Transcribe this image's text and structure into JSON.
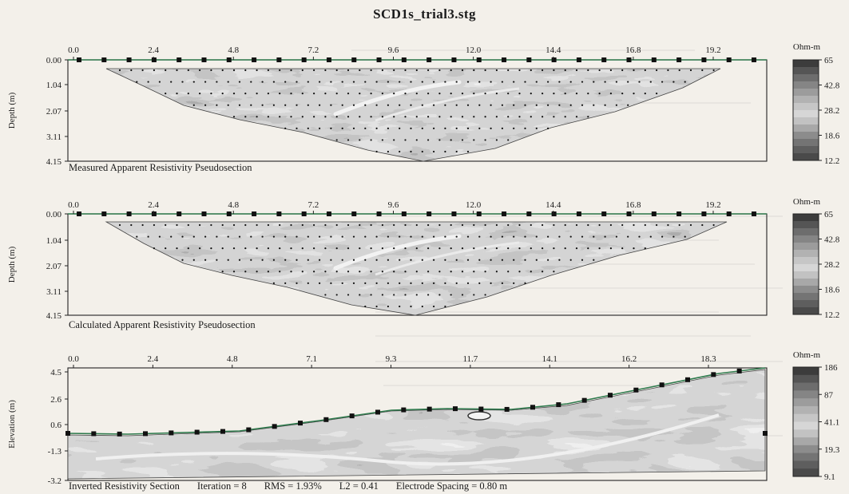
{
  "title": "SCD1s_trial3.stg",
  "chart_data": [
    {
      "type": "heatmap",
      "name": "measured",
      "caption": "Measured Apparent Resistivity Pseudosection",
      "ylabel": "Depth (m)",
      "x_ticks": [
        "0.0",
        "2.4",
        "4.8",
        "7.2",
        "9.6",
        "12.0",
        "14.4",
        "16.8",
        "19.2"
      ],
      "x_values": [
        0.0,
        2.4,
        4.8,
        7.2,
        9.6,
        12.0,
        14.4,
        16.8,
        19.2
      ],
      "y_ticks": [
        "0.00",
        "1.04",
        "2.07",
        "3.11",
        "4.15"
      ],
      "xlim": [
        0,
        21.6
      ],
      "ylim": [
        0,
        4.15
      ],
      "electrode_count": 28,
      "colorbar": {
        "unit": "Ohm-m",
        "ticks": [
          "65",
          "42.8",
          "28.2",
          "18.6",
          "12.2"
        ]
      }
    },
    {
      "type": "heatmap",
      "name": "calculated",
      "caption": "Calculated Apparent Resistivity Pseudosection",
      "ylabel": "Depth (m)",
      "x_ticks": [
        "0.0",
        "2.4",
        "4.8",
        "7.2",
        "9.6",
        "12.0",
        "14.4",
        "16.8",
        "19.2"
      ],
      "x_values": [
        0.0,
        2.4,
        4.8,
        7.2,
        9.6,
        12.0,
        14.4,
        16.8,
        19.2
      ],
      "y_ticks": [
        "0.00",
        "1.04",
        "2.07",
        "3.11",
        "4.15"
      ],
      "xlim": [
        0,
        21.6
      ],
      "ylim": [
        0,
        4.15
      ],
      "electrode_count": 28,
      "colorbar": {
        "unit": "Ohm-m",
        "ticks": [
          "65",
          "42.8",
          "28.2",
          "18.6",
          "12.2"
        ]
      }
    },
    {
      "type": "heatmap",
      "name": "inverted",
      "caption": "Inverted Resistivity Section",
      "ylabel": "Elevation (m)",
      "x_ticks": [
        "0.0",
        "2.4",
        "4.8",
        "7.1",
        "9.3",
        "11.7",
        "14.1",
        "16.2",
        "18.3"
      ],
      "y_ticks": [
        "4.5",
        "2.6",
        "0.6",
        "-1.3",
        "-3.2"
      ],
      "ylim": [
        -3.2,
        4.5
      ],
      "electrode_count": 28,
      "colorbar": {
        "unit": "Ohm-m",
        "ticks": [
          "186",
          "87",
          "41.1",
          "19.3",
          "9.1"
        ]
      },
      "stats": {
        "iteration": "Iteration = 8",
        "rms": "RMS = 1.93%",
        "l2": "L2 = 0.41",
        "spacing": "Electrode Spacing = 0.80 m"
      }
    }
  ]
}
